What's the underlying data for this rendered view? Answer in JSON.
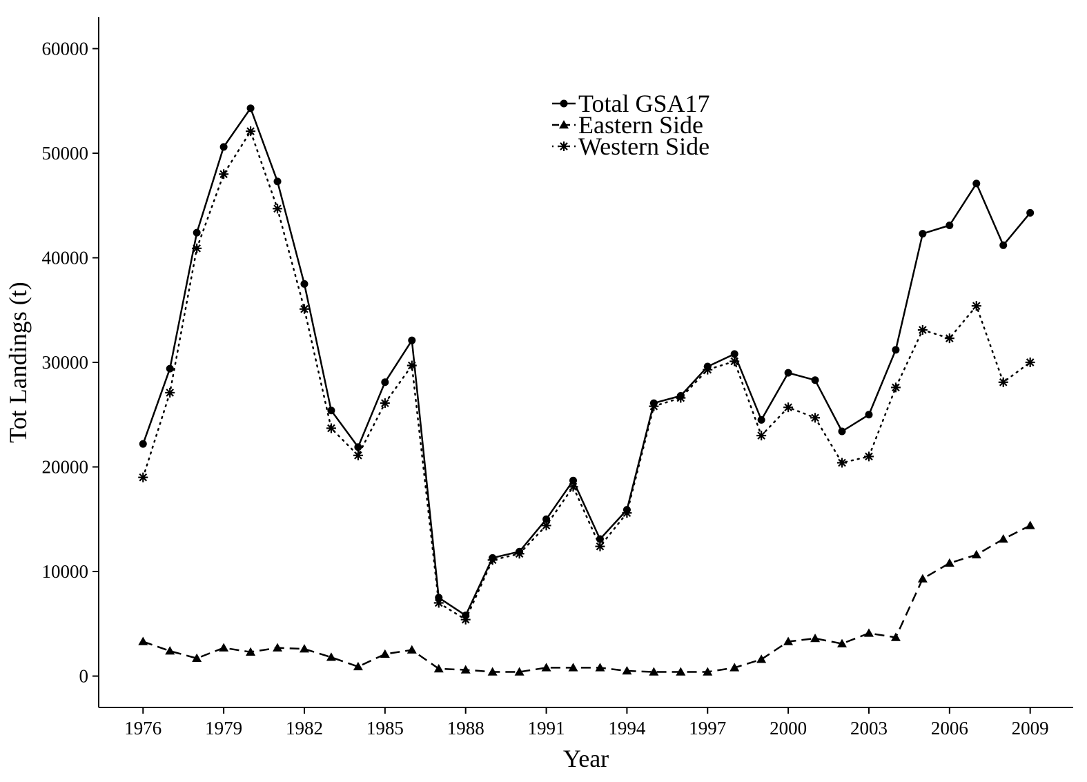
{
  "chart_data": {
    "type": "line",
    "title": "",
    "xlabel": "Year",
    "ylabel": "Tot Landings (t)",
    "xlim": [
      1974.35,
      2010.6
    ],
    "ylim": [
      -3000,
      63000
    ],
    "x_ticks": [
      1976,
      1979,
      1982,
      1985,
      1988,
      1991,
      1994,
      1997,
      2000,
      2003,
      2006,
      2009
    ],
    "x_tick_labels": [
      "1976",
      "1979",
      "1982",
      "1985",
      "1988",
      "1991",
      "1994",
      "1997",
      "2000",
      "2003",
      "2006",
      "2009"
    ],
    "y_ticks": [
      0,
      10000,
      20000,
      30000,
      40000,
      50000,
      60000
    ],
    "y_tick_labels": [
      "0",
      "10000",
      "20000",
      "30000",
      "40000",
      "50000",
      "60000"
    ],
    "grid": false,
    "legend_position": "top-center",
    "x": [
      1976,
      1977,
      1978,
      1979,
      1980,
      1981,
      1982,
      1983,
      1984,
      1985,
      1986,
      1987,
      1988,
      1989,
      1990,
      1991,
      1992,
      1993,
      1994,
      1995,
      1996,
      1997,
      1998,
      1999,
      2000,
      2001,
      2002,
      2003,
      2004,
      2005,
      2006,
      2007,
      2008,
      2009
    ],
    "series": [
      {
        "name": "Total GSA17",
        "line_style": "solid",
        "marker": "circle",
        "color": "#000000",
        "values": [
          22200,
          29400,
          42400,
          50600,
          54300,
          47300,
          37500,
          25400,
          21900,
          28100,
          32100,
          7500,
          5800,
          11300,
          11900,
          15000,
          18700,
          13100,
          15900,
          26100,
          26800,
          29600,
          30800,
          24500,
          29000,
          28300,
          23400,
          25000,
          31200,
          42300,
          43100,
          47100,
          41200,
          44300
        ]
      },
      {
        "name": "Eastern Side",
        "line_style": "dashed",
        "marker": "triangle",
        "color": "#000000",
        "values": [
          3300,
          2400,
          1700,
          2700,
          2300,
          2700,
          2600,
          1800,
          900,
          2100,
          2500,
          700,
          600,
          400,
          400,
          800,
          800,
          800,
          500,
          400,
          400,
          400,
          800,
          1600,
          3300,
          3600,
          3100,
          4100,
          3700,
          9300,
          10800,
          11600,
          13100,
          14400
        ]
      },
      {
        "name": "Western Side",
        "line_style": "dotted",
        "marker": "asterisk",
        "color": "#000000",
        "values": [
          19000,
          27100,
          40900,
          48000,
          52100,
          44700,
          35100,
          23700,
          21100,
          26100,
          29700,
          7000,
          5400,
          11100,
          11700,
          14400,
          18100,
          12400,
          15600,
          25800,
          26600,
          29300,
          30100,
          23000,
          25700,
          24700,
          20400,
          21000,
          27600,
          33100,
          32300,
          35400,
          28100,
          30000
        ]
      }
    ]
  }
}
